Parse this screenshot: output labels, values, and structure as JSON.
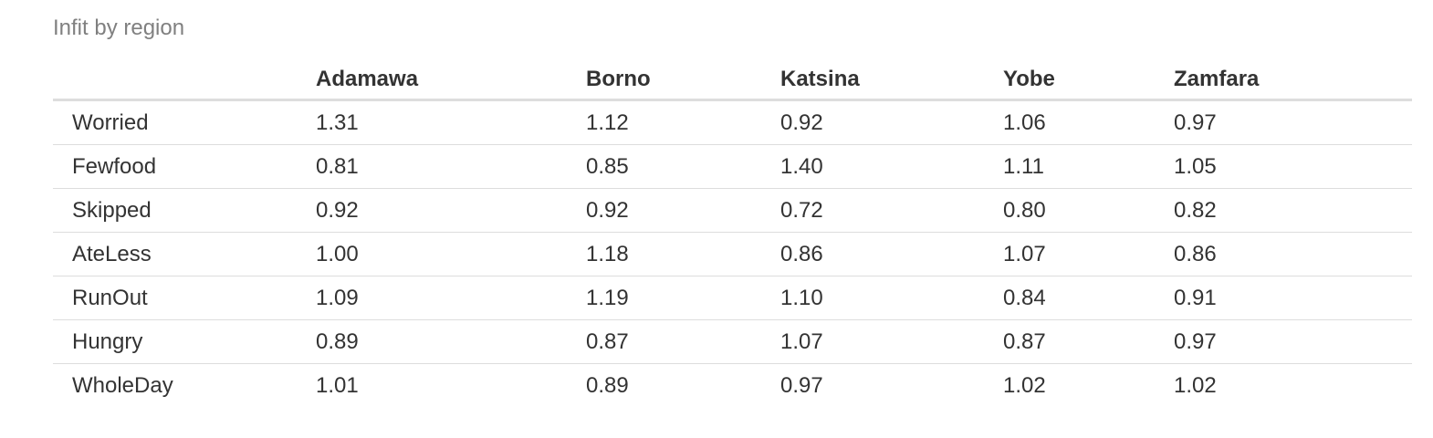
{
  "caption": "Infit by region",
  "table": {
    "columns": [
      "",
      "Adamawa",
      "Borno",
      "Katsina",
      "Yobe",
      "Zamfara"
    ],
    "rows": [
      {
        "label": "Worried",
        "values": [
          "1.31",
          "1.12",
          "0.92",
          "1.06",
          "0.97"
        ]
      },
      {
        "label": "Fewfood",
        "values": [
          "0.81",
          "0.85",
          "1.40",
          "1.11",
          "1.05"
        ]
      },
      {
        "label": "Skipped",
        "values": [
          "0.92",
          "0.92",
          "0.72",
          "0.80",
          "0.82"
        ]
      },
      {
        "label": "AteLess",
        "values": [
          "1.00",
          "1.18",
          "0.86",
          "1.07",
          "0.86"
        ]
      },
      {
        "label": "RunOut",
        "values": [
          "1.09",
          "1.19",
          "1.10",
          "0.84",
          "0.91"
        ]
      },
      {
        "label": "Hungry",
        "values": [
          "0.89",
          "0.87",
          "1.07",
          "0.87",
          "0.97"
        ]
      },
      {
        "label": "WholeDay",
        "values": [
          "1.01",
          "0.89",
          "0.97",
          "1.02",
          "1.02"
        ]
      }
    ]
  }
}
